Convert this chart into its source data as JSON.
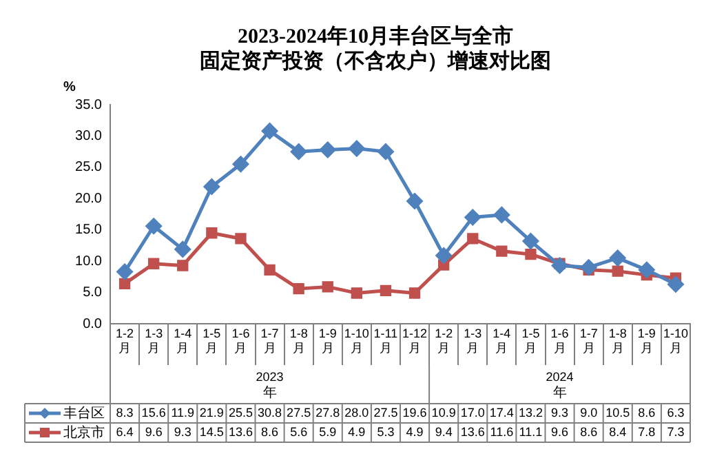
{
  "chart_data": {
    "type": "line",
    "title": "2023-2024年10月丰台区与全市固定资产投资（不含农户）增速对比图",
    "ylabel": "%",
    "categories": [
      "1-2月",
      "1-3月",
      "1-4月",
      "1-5月",
      "1-6月",
      "1-7月",
      "1-8月",
      "1-9月",
      "1-10月",
      "1-11月",
      "1-12月",
      "1-2月",
      "1-3月",
      "1-4月",
      "1-5月",
      "1-6月",
      "1-7月",
      "1-8月",
      "1-9月",
      "1-10月"
    ],
    "annotations": [
      "2023年",
      "2024年"
    ],
    "series": [
      {
        "name": "丰台区",
        "color": "#4f81bd",
        "marker": "diamond",
        "values": [
          8.3,
          15.6,
          11.9,
          21.9,
          25.5,
          30.8,
          27.5,
          27.8,
          28.0,
          27.5,
          19.6,
          10.9,
          17.0,
          17.4,
          13.2,
          9.3,
          9.0,
          10.5,
          8.6,
          6.3
        ],
        "value_labels": [
          "8.3",
          "15.6",
          "11.9",
          "21.9",
          "25.5",
          "30.8",
          "27.5",
          "27.8",
          "28.0",
          "27.5",
          "19.6",
          "10.9",
          "17.0",
          "17.4",
          "13.2",
          "9.3",
          "9.0",
          "10.5",
          "8.6",
          "6.3"
        ]
      },
      {
        "name": "北京市",
        "color": "#c0504d",
        "marker": "square",
        "values": [
          6.4,
          9.6,
          9.3,
          14.5,
          13.6,
          8.6,
          5.6,
          5.9,
          4.9,
          5.3,
          4.9,
          9.4,
          13.6,
          11.6,
          11.1,
          9.6,
          8.6,
          8.4,
          7.8,
          7.3
        ],
        "value_labels": [
          "6.4",
          "9.6",
          "9.3",
          "14.5",
          "13.6",
          "8.6",
          "5.6",
          "5.9",
          "4.9",
          "5.3",
          "4.9",
          "9.4",
          "13.6",
          "11.6",
          "11.1",
          "9.6",
          "8.6",
          "8.4",
          "7.8",
          "7.3"
        ]
      }
    ],
    "ylim": [
      0,
      35
    ],
    "yticks": [
      {
        "value": 0,
        "label": "0.0"
      },
      {
        "value": 5,
        "label": "5.0"
      },
      {
        "value": 10,
        "label": "10.0"
      },
      {
        "value": 15,
        "label": "15.0"
      },
      {
        "value": 20,
        "label": "20.0"
      },
      {
        "value": 25,
        "label": "25.0"
      },
      {
        "value": 30,
        "label": "30.0"
      },
      {
        "value": 35,
        "label": "35.0"
      }
    ],
    "grid": false,
    "legend": "bottom",
    "line_style": "solid"
  }
}
